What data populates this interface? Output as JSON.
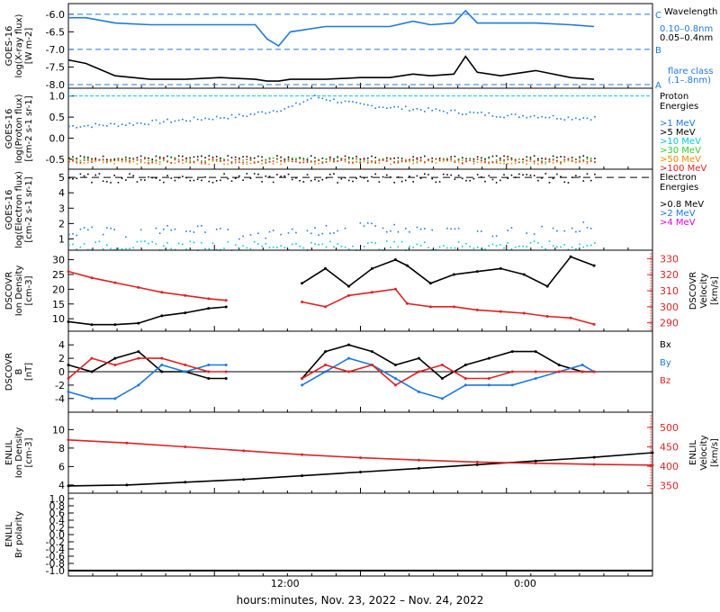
{
  "xaxis": {
    "label": "hours:minutes, Nov. 23, 2022 – Nov. 24, 2022",
    "tick_labels": [
      "12:00",
      "0:00"
    ]
  },
  "colors": {
    "blue": "#1e78dc",
    "black": "#000000",
    "cyan": "#00c8dc",
    "green": "#33cc33",
    "orange": "#f08c00",
    "red": "#dd2222",
    "magenta": "#e000e0",
    "axis": "#000000"
  },
  "chart_data": [
    {
      "type": "line",
      "ylabel": [
        "GOES-16",
        "log(X-ray flux)",
        "[W m-2]"
      ],
      "yticks": [
        "-6.0",
        "-6.5",
        "-7.0",
        "-7.5",
        "-8.0"
      ],
      "ylim": [
        -8.0,
        -5.8
      ],
      "flare_levels": [
        {
          "label": "C",
          "value": -6.0
        },
        {
          "label": "B",
          "value": -7.0
        },
        {
          "label": "A",
          "value": -8.0
        }
      ],
      "legend_title": "Wavelength",
      "legend": [
        {
          "label": "0.10–0.8nm",
          "color": "blue"
        },
        {
          "label": "0.05–0.4nm",
          "color": "black"
        }
      ],
      "note": [
        "flare class",
        "(.1–.8nm)"
      ],
      "x": [
        0,
        0.03,
        0.08,
        0.14,
        0.2,
        0.26,
        0.32,
        0.34,
        0.36,
        0.38,
        0.44,
        0.5,
        0.55,
        0.59,
        0.62,
        0.66,
        0.68,
        0.7,
        0.74,
        0.8,
        0.86,
        0.9
      ],
      "series": [
        {
          "name": "0.10–0.8nm",
          "color": "blue",
          "values": [
            -6.1,
            -6.1,
            -6.25,
            -6.3,
            -6.3,
            -6.3,
            -6.3,
            -6.7,
            -6.9,
            -6.5,
            -6.35,
            -6.35,
            -6.35,
            -6.2,
            -6.3,
            -6.25,
            -5.9,
            -6.25,
            -6.25,
            -6.25,
            -6.3,
            -6.35
          ]
        },
        {
          "name": "0.05–0.4nm",
          "color": "black",
          "values": [
            -7.3,
            -7.4,
            -7.75,
            -7.85,
            -7.85,
            -7.8,
            -7.85,
            -7.9,
            -7.9,
            -7.85,
            -7.85,
            -7.8,
            -7.8,
            -7.7,
            -7.75,
            -7.7,
            -7.2,
            -7.65,
            -7.75,
            -7.6,
            -7.8,
            -7.85
          ]
        }
      ]
    },
    {
      "type": "scatter",
      "ylabel": [
        "GOES-16",
        "log(Proton flux)",
        "[cm-2 s-1 sr-1]"
      ],
      "yticks": [
        "1.0",
        "0.5",
        "0.0",
        "-0.5"
      ],
      "ylim": [
        -0.65,
        1.1
      ],
      "legend_title": "Proton Energies",
      "legend": [
        {
          "label": ">1 MeV",
          "color": "blue"
        },
        {
          "label": ">5 MeV",
          "color": "black"
        },
        {
          "label": ">10 MeV",
          "color": "cyan"
        },
        {
          "label": ">30 MeV",
          "color": "green"
        },
        {
          "label": ">50 MeV",
          "color": "orange"
        },
        {
          "label": ">100 MeV",
          "color": "red"
        }
      ],
      "x": [
        0,
        0.1,
        0.2,
        0.3,
        0.38,
        0.42,
        0.46,
        0.5,
        0.55,
        0.6,
        0.65,
        0.7,
        0.75,
        0.8,
        0.85,
        0.9
      ],
      "series": [
        {
          "name": ">1 MeV",
          "color": "blue",
          "values": [
            0.3,
            0.35,
            0.45,
            0.55,
            0.75,
            1.0,
            0.9,
            0.8,
            0.75,
            0.7,
            0.65,
            0.6,
            0.55,
            0.55,
            0.5,
            0.5
          ]
        },
        {
          "name": ">5 MeV",
          "color": "black",
          "values": [
            -0.45,
            -0.45,
            -0.45,
            -0.45,
            -0.45,
            -0.45,
            -0.45,
            -0.45,
            -0.45,
            -0.45,
            -0.45,
            -0.45,
            -0.45,
            -0.45,
            -0.45,
            -0.45
          ]
        },
        {
          "name": ">30 MeV",
          "color": "green",
          "values": [
            -0.5,
            -0.5,
            -0.5,
            -0.5,
            -0.5,
            -0.5,
            -0.5,
            -0.5,
            -0.5,
            -0.5,
            -0.5,
            -0.5,
            -0.5,
            -0.5,
            -0.5,
            -0.5
          ]
        },
        {
          "name": ">50 MeV",
          "color": "orange",
          "values": [
            -0.55,
            -0.55,
            -0.55,
            -0.55,
            -0.55,
            -0.55,
            -0.55,
            -0.55,
            -0.55,
            -0.55,
            -0.55,
            -0.55,
            -0.55,
            -0.55,
            -0.55,
            -0.55
          ]
        },
        {
          "name": ">100 MeV",
          "color": "red",
          "values": [
            -0.52,
            -0.52,
            -0.52,
            -0.52,
            -0.52,
            -0.52,
            -0.52,
            -0.52,
            -0.52,
            -0.52,
            -0.52,
            -0.52,
            -0.52,
            -0.52,
            -0.52,
            -0.52
          ]
        }
      ]
    },
    {
      "type": "scatter",
      "ylabel": [
        "GOES-16",
        "log(Electron flux)",
        "[cm-2 s-1 sr-1]"
      ],
      "yticks": [
        "5",
        "4",
        "3",
        "2",
        "1"
      ],
      "ylim": [
        0.5,
        5.3
      ],
      "legend_title": "Electron Energies",
      "legend": [
        {
          "label": ">0.8 MeV",
          "color": "black"
        },
        {
          "label": ">2 MeV",
          "color": "blue"
        },
        {
          "label": ">4 MeV",
          "color": "magenta"
        }
      ],
      "x": [
        0,
        0.1,
        0.2,
        0.3,
        0.4,
        0.5,
        0.6,
        0.7,
        0.8,
        0.9
      ],
      "series": [
        {
          "name": ">0.8 MeV",
          "color": "black",
          "values": [
            5,
            5,
            5,
            5,
            5,
            5,
            5,
            5,
            5,
            5
          ]
        },
        {
          "name": ">2 MeV",
          "color": "blue",
          "values": [
            1.6,
            1.4,
            1.8,
            1.2,
            1.5,
            1.8,
            1.7,
            1.4,
            1.6,
            1.9
          ]
        },
        {
          "name": "cyan baseline",
          "color": "cyan",
          "values": [
            0.6,
            0.6,
            0.6,
            0.6,
            0.6,
            0.6,
            0.6,
            0.6,
            0.6,
            0.6
          ]
        }
      ]
    },
    {
      "type": "line",
      "ylabel": [
        "DSCOVR",
        "Ion Density",
        "[cm-3]"
      ],
      "yticks": [
        "30",
        "25",
        "20",
        "15",
        "10"
      ],
      "ylim": [
        7,
        32
      ],
      "right_ylabel": [
        "DSCOVR",
        "Velocity",
        "[km/s]"
      ],
      "right_yticks": [
        "330",
        "320",
        "310",
        "300",
        "290"
      ],
      "right_ylim": [
        287,
        333
      ],
      "x": [
        0,
        0.04,
        0.08,
        0.12,
        0.16,
        0.2,
        0.24,
        0.27,
        0.28,
        0.32,
        0.36,
        0.4,
        0.44,
        0.48,
        0.52,
        0.56,
        0.58,
        0.62,
        0.66,
        0.7,
        0.74,
        0.78,
        0.82,
        0.86,
        0.9
      ],
      "series": [
        {
          "name": "Ion Density",
          "color": "black",
          "values": [
            9,
            8,
            8,
            8.5,
            11,
            12,
            13.5,
            14,
            null,
            null,
            null,
            22,
            27,
            21,
            27,
            30,
            28,
            22,
            25,
            26,
            27,
            25,
            21,
            31,
            28
          ]
        },
        {
          "name": "Velocity",
          "color": "red",
          "axis": "right",
          "values": [
            322,
            318,
            315,
            312,
            309,
            307,
            305,
            304,
            null,
            null,
            null,
            303,
            300,
            307,
            309,
            311,
            302,
            300,
            300,
            298,
            297,
            296,
            294,
            293,
            289
          ]
        }
      ]
    },
    {
      "type": "line",
      "ylabel": [
        "DSCOVR",
        "B",
        "[nT]"
      ],
      "yticks": [
        "4",
        "2",
        "0",
        "-2",
        "-4"
      ],
      "ylim": [
        -5.5,
        5.5
      ],
      "legend": [
        {
          "label": "Bx",
          "color": "black"
        },
        {
          "label": "By",
          "color": "blue"
        },
        {
          "label": "Bz",
          "color": "red"
        }
      ],
      "x": [
        0,
        0.04,
        0.08,
        0.12,
        0.16,
        0.2,
        0.24,
        0.27,
        0.28,
        0.32,
        0.36,
        0.4,
        0.44,
        0.48,
        0.52,
        0.56,
        0.6,
        0.64,
        0.68,
        0.72,
        0.76,
        0.8,
        0.84,
        0.88,
        0.9
      ],
      "series": [
        {
          "name": "Bx",
          "color": "black",
          "values": [
            1,
            0,
            2,
            3,
            0,
            0,
            -1,
            -1,
            null,
            null,
            null,
            -1,
            3,
            4,
            3,
            1,
            2,
            -1,
            1,
            2,
            3,
            3,
            1,
            0,
            0
          ]
        },
        {
          "name": "By",
          "color": "blue",
          "values": [
            -3,
            -4,
            -4,
            -2,
            1,
            0,
            1,
            1,
            null,
            null,
            null,
            -2,
            0,
            2,
            1,
            -1,
            -3,
            -4,
            -2,
            -2,
            -2,
            -1,
            0,
            1,
            0
          ]
        },
        {
          "name": "Bz",
          "color": "red",
          "values": [
            -1,
            2,
            1,
            2,
            2,
            1,
            0,
            0,
            null,
            null,
            null,
            -1,
            1,
            0,
            1,
            -2,
            0,
            1,
            -1,
            -1,
            0,
            0,
            0,
            0,
            0
          ]
        }
      ]
    },
    {
      "type": "line",
      "ylabel": [
        "ENLIL",
        "Ion Density",
        "[cm-3]"
      ],
      "yticks": [
        "10",
        "8",
        "6",
        "4"
      ],
      "ylim": [
        3.5,
        11.5
      ],
      "right_ylabel": [
        "ENLIL",
        "Velocity",
        "[km/s]"
      ],
      "right_yticks": [
        "500",
        "450",
        "400",
        "350"
      ],
      "right_ylim": [
        340,
        530
      ],
      "x": [
        0,
        0.1,
        0.2,
        0.3,
        0.4,
        0.5,
        0.6,
        0.7,
        0.8,
        0.9,
        1.0
      ],
      "series": [
        {
          "name": "Ion Density",
          "color": "black",
          "values": [
            3.9,
            4.0,
            4.3,
            4.6,
            5.0,
            5.4,
            5.8,
            6.2,
            6.6,
            7.0,
            7.5
          ]
        },
        {
          "name": "Velocity",
          "color": "red",
          "axis": "right",
          "values": [
            468,
            460,
            450,
            440,
            430,
            422,
            416,
            411,
            408,
            405,
            403
          ]
        }
      ]
    },
    {
      "type": "line",
      "ylabel": [
        "ENLIL",
        "Br polarity"
      ],
      "yticks": [
        "1.0",
        "0.8",
        "0.6",
        "0.4",
        "0.2",
        "0.0",
        "-0.2",
        "-0.4",
        "-0.6",
        "-0.8",
        "-1.0"
      ],
      "ylim": [
        -1.05,
        1.05
      ],
      "x": [
        0,
        1.0
      ],
      "series": [
        {
          "name": "Br polarity",
          "color": "black",
          "values": [
            -1.0,
            -1.0
          ]
        }
      ]
    }
  ]
}
